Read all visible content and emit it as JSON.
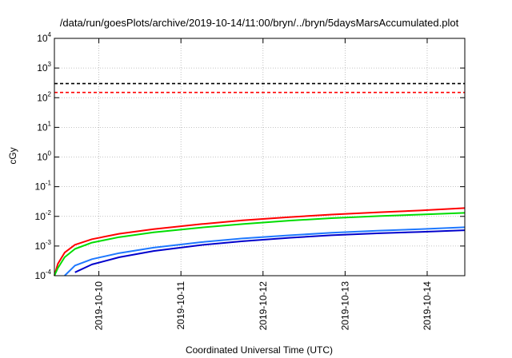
{
  "chart_data": {
    "type": "line",
    "title": "/data/run/goesPlots/archive/2019-10-14/11:00/bryn/../bryn/5daysMarsAccumulated.plot",
    "xlabel": "Coordinated Universal Time (UTC)",
    "ylabel": "cGy",
    "y_scale": "log",
    "ylim": [
      0.0001,
      10000
    ],
    "y_ticks": [
      {
        "base": "10",
        "exp": "-4",
        "value": 0.0001
      },
      {
        "base": "10",
        "exp": "-3",
        "value": 0.001
      },
      {
        "base": "10",
        "exp": "-2",
        "value": 0.01
      },
      {
        "base": "10",
        "exp": "-1",
        "value": 0.1
      },
      {
        "base": "10",
        "exp": "0",
        "value": 1
      },
      {
        "base": "10",
        "exp": "1",
        "value": 10
      },
      {
        "base": "10",
        "exp": "2",
        "value": 100
      },
      {
        "base": "10",
        "exp": "3",
        "value": 1000
      },
      {
        "base": "10",
        "exp": "4",
        "value": 10000
      }
    ],
    "xlim": [
      "2019-10-09T11:00",
      "2019-10-14T11:00"
    ],
    "x_ticks": [
      "2019-10-10",
      "2019-10-11",
      "2019-10-12",
      "2019-10-13",
      "2019-10-14"
    ],
    "grid": true,
    "legend": "none",
    "reference_lines": [
      {
        "value": 300,
        "color": "#000000",
        "style": "dashed"
      },
      {
        "value": 150,
        "color": "#ff0000",
        "style": "dashed"
      }
    ],
    "x": [
      "2019-10-09T11:00",
      "2019-10-09T12:00",
      "2019-10-09T14:00",
      "2019-10-09T17:00",
      "2019-10-09T22:00",
      "2019-10-10T06:00",
      "2019-10-10T16:00",
      "2019-10-11T06:00",
      "2019-10-11T18:00",
      "2019-10-12T08:00",
      "2019-10-12T20:00",
      "2019-10-13T10:00",
      "2019-10-13T22:00",
      "2019-10-14T11:00"
    ],
    "series": [
      {
        "color": "#ff0000",
        "values": [
          0.0001,
          0.00025,
          0.0006,
          0.0011,
          0.0017,
          0.0026,
          0.0037,
          0.0055,
          0.0073,
          0.0095,
          0.0115,
          0.0138,
          0.0158,
          0.019
        ]
      },
      {
        "color": "#00dd00",
        "values": [
          0.0001,
          0.00018,
          0.00042,
          0.0008,
          0.0013,
          0.002,
          0.0029,
          0.0042,
          0.0055,
          0.0072,
          0.0087,
          0.0102,
          0.0115,
          0.0131
        ]
      },
      {
        "color": "#1e78ff",
        "values": [
          null,
          null,
          0.0001,
          0.00022,
          0.00036,
          0.00058,
          0.00088,
          0.00135,
          0.0018,
          0.0023,
          0.0028,
          0.0033,
          0.0037,
          0.0043
        ]
      },
      {
        "color": "#0000cc",
        "values": [
          null,
          null,
          null,
          0.00013,
          0.00024,
          0.00042,
          0.00068,
          0.00108,
          0.00145,
          0.0019,
          0.0023,
          0.0027,
          0.003,
          0.0034
        ]
      }
    ]
  }
}
